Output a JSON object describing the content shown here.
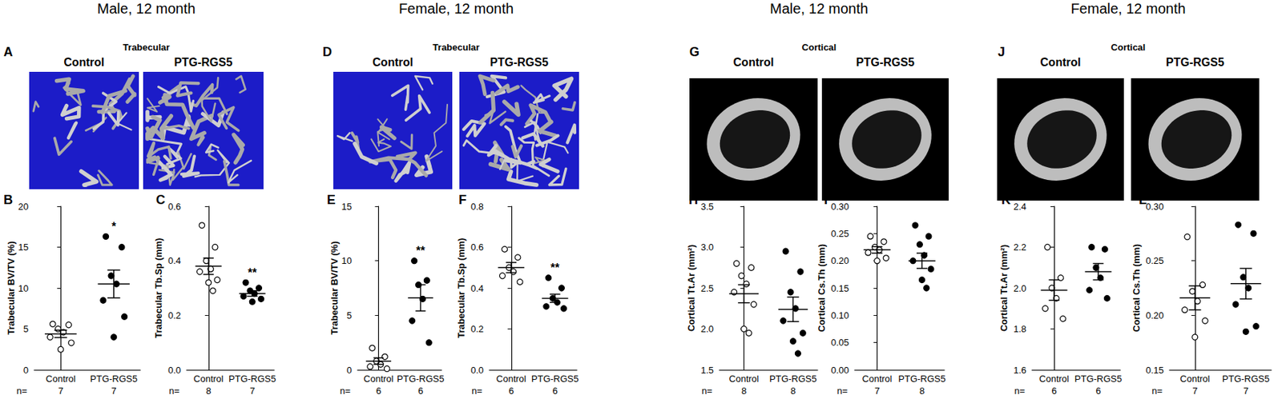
{
  "image_panels": [
    {
      "header": "Male, 12 month",
      "panel": "A",
      "title": "Trabecular",
      "type": "trabecular",
      "labels": [
        "Control",
        "PTG-RGS5"
      ]
    },
    {
      "header": "Female, 12 month",
      "panel": "D",
      "title": "Trabecular",
      "type": "trabecular",
      "labels": [
        "Control",
        "PTG-RGS5"
      ]
    },
    {
      "header": "Male, 12 month",
      "panel": "G",
      "title": "Cortical",
      "type": "cortical",
      "labels": [
        "Control",
        "PTG-RGS5"
      ]
    },
    {
      "header": "Female, 12 month",
      "panel": "J",
      "title": "Cortical",
      "type": "cortical",
      "labels": [
        "Control",
        "PTG-RGS5"
      ]
    }
  ],
  "chart_data": [
    {
      "panel": "B",
      "type": "scatter",
      "y_label": "Trabecular BV/TV (%)",
      "color": "#000000",
      "n_label": "n=",
      "ylim": [
        0,
        20
      ],
      "yticks": [
        0,
        5,
        10,
        15,
        20
      ],
      "series": [
        {
          "name": "Control",
          "marker": "open",
          "n": 7,
          "values": [
            5.6,
            5.5,
            5.0,
            4.6,
            4.0,
            3.3,
            2.5
          ],
          "mean": 4.4,
          "sem": 0.45
        },
        {
          "name": "PTG-RGS5",
          "marker": "filled",
          "n": 7,
          "values": [
            16.3,
            15.0,
            11.5,
            10.5,
            8.5,
            6.5,
            4.0
          ],
          "mean": 10.5,
          "sem": 1.7,
          "annotation": "*"
        }
      ]
    },
    {
      "panel": "C",
      "type": "scatter",
      "y_label": "Trabecular Tb.Sp (mm)",
      "color": "#000000",
      "n_label": "n=",
      "ylim": [
        0,
        0.6
      ],
      "yticks": [
        {
          "value": 0,
          "label": "0.0"
        },
        0.2,
        0.4,
        0.6
      ],
      "series": [
        {
          "name": "Control",
          "marker": "open",
          "n": 8,
          "values": [
            0.53,
            0.45,
            0.4,
            0.37,
            0.36,
            0.33,
            0.32,
            0.29
          ],
          "mean": 0.38,
          "sem": 0.03
        },
        {
          "name": "PTG-RGS5",
          "marker": "filled",
          "n": 7,
          "values": [
            0.32,
            0.3,
            0.29,
            0.28,
            0.27,
            0.26,
            0.25
          ],
          "mean": 0.28,
          "sem": 0.01,
          "annotation": "**"
        }
      ]
    },
    {
      "panel": "E",
      "type": "scatter",
      "y_label": "Trabecular BV/TV (%)",
      "color": "#000000",
      "n_label": "n=",
      "ylim": [
        0,
        15
      ],
      "yticks": [
        0,
        5,
        10,
        15
      ],
      "series": [
        {
          "name": "Control",
          "marker": "open",
          "n": 6,
          "values": [
            2.0,
            1.2,
            0.8,
            0.5,
            0.3,
            0.1
          ],
          "mean": 0.8,
          "sem": 0.3
        },
        {
          "name": "PTG-RGS5",
          "marker": "filled",
          "n": 6,
          "values": [
            10.0,
            8.2,
            7.8,
            6.5,
            4.5,
            2.5
          ],
          "mean": 6.6,
          "sem": 1.2,
          "annotation": "**"
        }
      ]
    },
    {
      "panel": "F",
      "type": "scatter",
      "y_label": "Trabecular Tb.Sp (mm)",
      "color": "#000000",
      "n_label": "n=",
      "ylim": [
        0,
        0.8
      ],
      "yticks": [
        {
          "value": 0,
          "label": "0.0"
        },
        0.2,
        0.4,
        0.6,
        0.8
      ],
      "series": [
        {
          "name": "Control",
          "marker": "open",
          "n": 6,
          "values": [
            0.59,
            0.55,
            0.5,
            0.48,
            0.46,
            0.43
          ],
          "mean": 0.5,
          "sem": 0.025
        },
        {
          "name": "PTG-RGS5",
          "marker": "filled",
          "n": 6,
          "values": [
            0.45,
            0.4,
            0.35,
            0.33,
            0.31,
            0.3
          ],
          "mean": 0.35,
          "sem": 0.02,
          "annotation": "**"
        }
      ]
    },
    {
      "panel": "H",
      "type": "scatter",
      "y_label": "Cortical Tt.Ar (mm²)",
      "color": "#000000",
      "n_label": "n=",
      "ylim": [
        1.5,
        3.5
      ],
      "yticks": [
        1.5,
        {
          "value": 2,
          "label": "2.0"
        },
        2.5,
        {
          "value": 3,
          "label": "3.0"
        },
        3.5
      ],
      "series": [
        {
          "name": "Control",
          "marker": "open",
          "n": 8,
          "values": [
            2.8,
            2.75,
            2.65,
            2.55,
            2.45,
            2.3,
            2.0,
            1.95
          ],
          "mean": 2.43,
          "sem": 0.11
        },
        {
          "name": "PTG-RGS5",
          "marker": "filled",
          "n": 8,
          "values": [
            2.95,
            2.7,
            2.45,
            2.25,
            2.1,
            1.95,
            1.85,
            1.7
          ],
          "mean": 2.24,
          "sem": 0.15
        }
      ]
    },
    {
      "panel": "I",
      "type": "scatter",
      "y_label": "Cortical Cs.Th (mm)",
      "color": "#000000",
      "n_label": "n=",
      "ylim": [
        0,
        0.3
      ],
      "yticks": [
        {
          "value": 0,
          "label": "0.00"
        },
        0.05,
        {
          "value": 0.1,
          "label": "0.10"
        },
        0.15,
        {
          "value": 0.2,
          "label": "0.20"
        },
        0.25,
        {
          "value": 0.3,
          "label": "0.30"
        }
      ],
      "series": [
        {
          "name": "Control",
          "marker": "open",
          "n": 7,
          "values": [
            0.245,
            0.235,
            0.225,
            0.22,
            0.215,
            0.205,
            0.2
          ],
          "mean": 0.22,
          "sem": 0.006
        },
        {
          "name": "PTG-RGS5",
          "marker": "filled",
          "n": 8,
          "values": [
            0.265,
            0.245,
            0.23,
            0.21,
            0.2,
            0.185,
            0.165,
            0.15
          ],
          "mean": 0.2,
          "sem": 0.014
        }
      ]
    },
    {
      "panel": "K",
      "type": "scatter",
      "y_label": "Cortical Tt.Ar (mm²)",
      "color": "#000000",
      "n_label": "n=",
      "ylim": [
        1.6,
        2.4
      ],
      "yticks": [
        1.6,
        1.8,
        {
          "value": 2,
          "label": "2.0"
        },
        2.2,
        2.4
      ],
      "series": [
        {
          "name": "Control",
          "marker": "open",
          "n": 6,
          "values": [
            2.2,
            2.05,
            2.0,
            1.95,
            1.9,
            1.85
          ],
          "mean": 1.99,
          "sem": 0.05
        },
        {
          "name": "PTG-RGS5",
          "marker": "filled",
          "n": 6,
          "values": [
            2.2,
            2.19,
            2.1,
            2.05,
            1.99,
            1.95
          ],
          "mean": 2.08,
          "sem": 0.04
        }
      ]
    },
    {
      "panel": "L",
      "type": "scatter",
      "y_label": "Cortical Cs.Th (mm)",
      "color": "#000000",
      "n_label": "n=",
      "ylim": [
        0.15,
        0.3
      ],
      "yticks": [
        0.15,
        {
          "value": 0.2,
          "label": "0.20"
        },
        0.25,
        {
          "value": 0.3,
          "label": "0.30"
        }
      ],
      "series": [
        {
          "name": "Control",
          "marker": "open",
          "n": 7,
          "values": [
            0.272,
            0.228,
            0.222,
            0.213,
            0.205,
            0.195,
            0.18
          ],
          "mean": 0.216,
          "sem": 0.011
        },
        {
          "name": "PTG-RGS5",
          "marker": "filled",
          "n": 7,
          "values": [
            0.283,
            0.275,
            0.235,
            0.225,
            0.21,
            0.19,
            0.185
          ],
          "mean": 0.229,
          "sem": 0.014
        }
      ]
    }
  ]
}
